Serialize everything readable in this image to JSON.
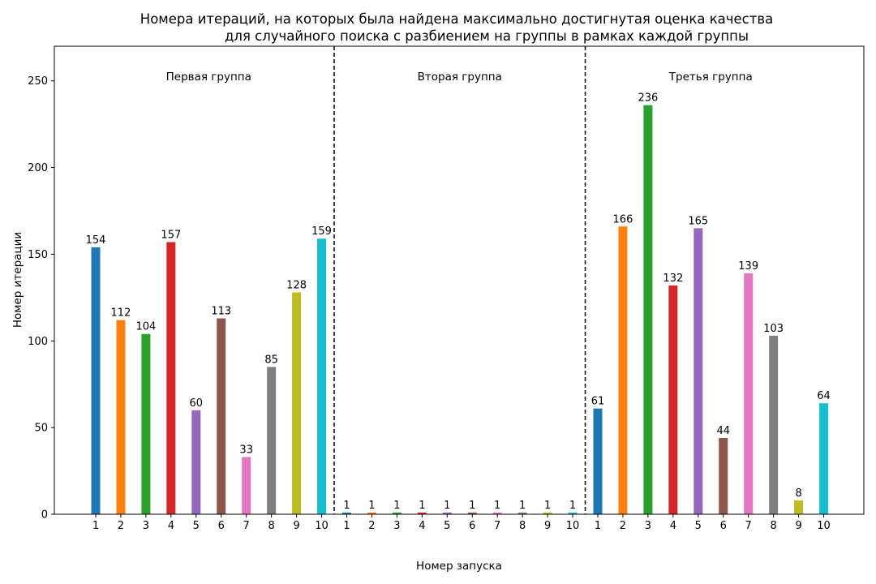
{
  "chart_data": {
    "type": "bar",
    "title_lines": [
      "Номера итераций, на которых была найдена максимально достигнутая оценка качества",
      "для случайного поиска с разбиением на группы в рамках каждой группы"
    ],
    "xlabel": "Номер запуска",
    "ylabel": "Номер итерации",
    "ylim": [
      0,
      270
    ],
    "yticks": [
      0,
      50,
      100,
      150,
      200,
      250
    ],
    "categories": [
      "1",
      "2",
      "3",
      "4",
      "5",
      "6",
      "7",
      "8",
      "9",
      "10"
    ],
    "colors": [
      "#1f77b4",
      "#ff7f0e",
      "#2ca02c",
      "#d62728",
      "#9467bd",
      "#8c564b",
      "#e377c2",
      "#7f7f7f",
      "#bcbd22",
      "#17becf"
    ],
    "groups": [
      {
        "name": "Первая группа",
        "values": [
          154,
          112,
          104,
          157,
          60,
          113,
          33,
          85,
          128,
          159
        ]
      },
      {
        "name": "Вторая группа",
        "values": [
          1,
          1,
          1,
          1,
          1,
          1,
          1,
          1,
          1,
          1
        ]
      },
      {
        "name": "Третья группа",
        "values": [
          61,
          166,
          236,
          132,
          165,
          44,
          139,
          103,
          8,
          64
        ]
      }
    ],
    "group_separators": "dashed vertical lines between groups",
    "grid": false
  }
}
